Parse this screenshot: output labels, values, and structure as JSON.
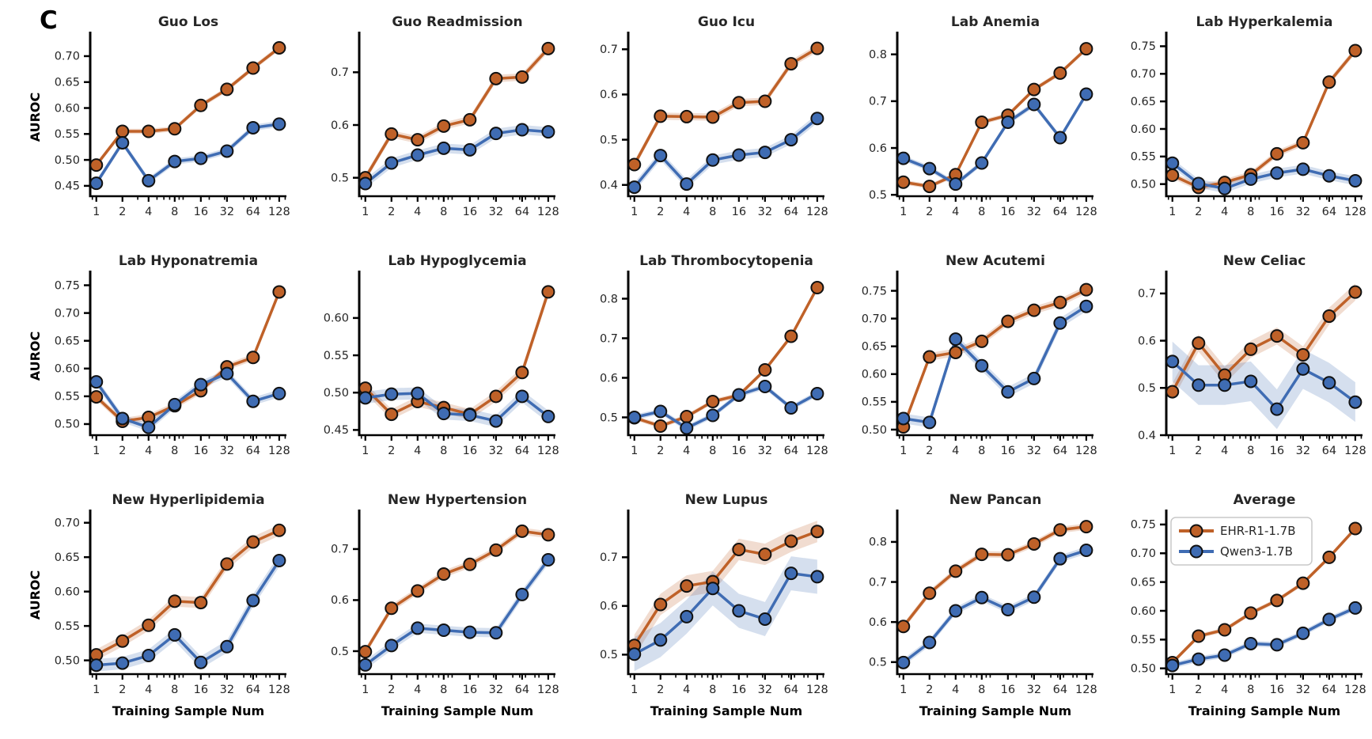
{
  "panel_label": "C",
  "figure": {
    "ylabel": "AUROC",
    "xlabel": "Training Sample Num",
    "x_tick_labels": [
      "1",
      "2",
      "4",
      "8",
      "16",
      "32",
      "64",
      "128"
    ],
    "colors": {
      "ehr": "#bf6128",
      "qwen": "#3f6cb3",
      "marker_edge": "#111111",
      "axis": "#000000",
      "text": "#262626",
      "legend_border": "#c8c8c8"
    },
    "legend": {
      "labels": [
        "EHR-R1-1.7B",
        "Qwen3-1.7B"
      ]
    }
  },
  "chart_data": [
    {
      "type": "line",
      "title": "Guo Los",
      "xscale": "log",
      "x": [
        1,
        2,
        4,
        8,
        16,
        32,
        64,
        128
      ],
      "series": [
        {
          "name": "EHR-R1-1.7B",
          "values": [
            0.49,
            0.555,
            0.555,
            0.56,
            0.605,
            0.636,
            0.677,
            0.716
          ],
          "band": 0.005
        },
        {
          "name": "Qwen3-1.7B",
          "values": [
            0.455,
            0.533,
            0.46,
            0.497,
            0.503,
            0.517,
            0.562,
            0.569
          ],
          "band": 0.006
        }
      ],
      "yticks": [
        "0.45",
        "0.50",
        "0.55",
        "0.60",
        "0.65",
        "0.70"
      ],
      "ylim": [
        0.43,
        0.735
      ],
      "show_ylabel": true,
      "show_xlabel": false,
      "show_legend": false
    },
    {
      "type": "line",
      "title": "Guo Readmission",
      "xscale": "log",
      "x": [
        1,
        2,
        4,
        8,
        16,
        32,
        64,
        128
      ],
      "series": [
        {
          "name": "EHR-R1-1.7B",
          "values": [
            0.5,
            0.583,
            0.572,
            0.598,
            0.61,
            0.688,
            0.691,
            0.745
          ],
          "band": 0.007
        },
        {
          "name": "Qwen3-1.7B",
          "values": [
            0.489,
            0.528,
            0.543,
            0.556,
            0.553,
            0.584,
            0.591,
            0.587
          ],
          "band": 0.009
        }
      ],
      "yticks": [
        "0.5",
        "0.6",
        "0.7"
      ],
      "ylim": [
        0.465,
        0.765
      ],
      "show_ylabel": false,
      "show_xlabel": false,
      "show_legend": false
    },
    {
      "type": "line",
      "title": "Guo Icu",
      "xscale": "log",
      "x": [
        1,
        2,
        4,
        8,
        16,
        32,
        64,
        128
      ],
      "series": [
        {
          "name": "EHR-R1-1.7B",
          "values": [
            0.445,
            0.552,
            0.551,
            0.55,
            0.582,
            0.585,
            0.668,
            0.702
          ],
          "band": 0.008
        },
        {
          "name": "Qwen3-1.7B",
          "values": [
            0.395,
            0.465,
            0.402,
            0.455,
            0.466,
            0.472,
            0.5,
            0.547
          ],
          "band": 0.01
        }
      ],
      "yticks": [
        "0.4",
        "0.5",
        "0.6",
        "0.7"
      ],
      "ylim": [
        0.375,
        0.725
      ],
      "show_ylabel": false,
      "show_xlabel": false,
      "show_legend": false
    },
    {
      "type": "line",
      "title": "Lab Anemia",
      "xscale": "log",
      "x": [
        1,
        2,
        4,
        8,
        16,
        32,
        64,
        128
      ],
      "series": [
        {
          "name": "EHR-R1-1.7B",
          "values": [
            0.527,
            0.518,
            0.543,
            0.655,
            0.67,
            0.725,
            0.76,
            0.812
          ],
          "band": 0.005
        },
        {
          "name": "Qwen3-1.7B",
          "values": [
            0.578,
            0.556,
            0.523,
            0.568,
            0.655,
            0.693,
            0.622,
            0.715
          ],
          "band": 0.006
        }
      ],
      "yticks": [
        "0.5",
        "0.6",
        "0.7",
        "0.8"
      ],
      "ylim": [
        0.497,
        0.835
      ],
      "show_ylabel": false,
      "show_xlabel": false,
      "show_legend": false
    },
    {
      "type": "line",
      "title": "Lab Hyperkalemia",
      "xscale": "log",
      "x": [
        1,
        2,
        4,
        8,
        16,
        32,
        64,
        128
      ],
      "series": [
        {
          "name": "EHR-R1-1.7B",
          "values": [
            0.516,
            0.494,
            0.503,
            0.517,
            0.555,
            0.575,
            0.685,
            0.742
          ],
          "band": 0.006
        },
        {
          "name": "Qwen3-1.7B",
          "values": [
            0.538,
            0.501,
            0.492,
            0.509,
            0.52,
            0.527,
            0.515,
            0.506
          ],
          "band": 0.008
        }
      ],
      "yticks": [
        "0.50",
        "0.55",
        "0.60",
        "0.65",
        "0.70",
        "0.75"
      ],
      "ylim": [
        0.478,
        0.765
      ],
      "show_ylabel": false,
      "show_xlabel": false,
      "show_legend": false
    },
    {
      "type": "line",
      "title": "Lab Hyponatremia",
      "xscale": "log",
      "x": [
        1,
        2,
        4,
        8,
        16,
        32,
        64,
        128
      ],
      "series": [
        {
          "name": "EHR-R1-1.7B",
          "values": [
            0.549,
            0.505,
            0.512,
            0.533,
            0.56,
            0.603,
            0.62,
            0.738
          ],
          "band": 0.006
        },
        {
          "name": "Qwen3-1.7B",
          "values": [
            0.576,
            0.51,
            0.494,
            0.535,
            0.571,
            0.591,
            0.541,
            0.555
          ],
          "band": 0.007
        }
      ],
      "yticks": [
        "0.50",
        "0.55",
        "0.60",
        "0.65",
        "0.70",
        "0.75"
      ],
      "ylim": [
        0.48,
        0.765
      ],
      "show_ylabel": true,
      "show_xlabel": false,
      "show_legend": false
    },
    {
      "type": "line",
      "title": "Lab Hypoglycemia",
      "xscale": "log",
      "x": [
        1,
        2,
        4,
        8,
        16,
        32,
        64,
        128
      ],
      "series": [
        {
          "name": "EHR-R1-1.7B",
          "values": [
            0.506,
            0.471,
            0.488,
            0.48,
            0.471,
            0.495,
            0.527,
            0.635
          ],
          "band": 0.007
        },
        {
          "name": "Qwen3-1.7B",
          "values": [
            0.493,
            0.498,
            0.499,
            0.472,
            0.47,
            0.462,
            0.495,
            0.468
          ],
          "band": 0.008
        }
      ],
      "yticks": [
        "0.45",
        "0.50",
        "0.55",
        "0.60"
      ],
      "ylim": [
        0.443,
        0.655
      ],
      "show_ylabel": false,
      "show_xlabel": false,
      "show_legend": false
    },
    {
      "type": "line",
      "title": "Lab Thrombocytopenia",
      "xscale": "log",
      "x": [
        1,
        2,
        4,
        8,
        16,
        32,
        64,
        128
      ],
      "series": [
        {
          "name": "EHR-R1-1.7B",
          "values": [
            0.499,
            0.478,
            0.502,
            0.54,
            0.556,
            0.62,
            0.705,
            0.828
          ],
          "band": 0.006
        },
        {
          "name": "Qwen3-1.7B",
          "values": [
            0.5,
            0.515,
            0.473,
            0.505,
            0.557,
            0.578,
            0.524,
            0.56
          ],
          "band": 0.007
        }
      ],
      "yticks": [
        "0.5",
        "0.6",
        "0.7",
        "0.8"
      ],
      "ylim": [
        0.455,
        0.855
      ],
      "show_ylabel": false,
      "show_xlabel": false,
      "show_legend": false
    },
    {
      "type": "line",
      "title": "New Acutemi",
      "xscale": "log",
      "x": [
        1,
        2,
        4,
        8,
        16,
        32,
        64,
        128
      ],
      "series": [
        {
          "name": "EHR-R1-1.7B",
          "values": [
            0.505,
            0.631,
            0.639,
            0.659,
            0.695,
            0.715,
            0.729,
            0.752
          ],
          "band": 0.007
        },
        {
          "name": "Qwen3-1.7B",
          "values": [
            0.52,
            0.513,
            0.663,
            0.615,
            0.568,
            0.592,
            0.692,
            0.722
          ],
          "band": 0.009
        }
      ],
      "yticks": [
        "0.50",
        "0.55",
        "0.60",
        "0.65",
        "0.70",
        "0.75"
      ],
      "ylim": [
        0.49,
        0.775
      ],
      "show_ylabel": false,
      "show_xlabel": false,
      "show_legend": false
    },
    {
      "type": "line",
      "title": "New Celiac",
      "xscale": "log",
      "x": [
        1,
        2,
        4,
        8,
        16,
        32,
        64,
        128
      ],
      "series": [
        {
          "name": "EHR-R1-1.7B",
          "values": [
            0.492,
            0.595,
            0.527,
            0.582,
            0.61,
            0.57,
            0.652,
            0.703
          ],
          "band": 0.018
        },
        {
          "name": "Qwen3-1.7B",
          "values": [
            0.556,
            0.506,
            0.506,
            0.514,
            0.455,
            0.54,
            0.511,
            0.47
          ],
          "band": 0.042
        }
      ],
      "yticks": [
        "0.4",
        "0.5",
        "0.6",
        "0.7"
      ],
      "ylim": [
        0.4,
        0.735
      ],
      "show_ylabel": false,
      "show_xlabel": false,
      "show_legend": false
    },
    {
      "type": "line",
      "title": "New Hyperlipidemia",
      "xscale": "log",
      "x": [
        1,
        2,
        4,
        8,
        16,
        32,
        64,
        128
      ],
      "series": [
        {
          "name": "EHR-R1-1.7B",
          "values": [
            0.508,
            0.528,
            0.551,
            0.586,
            0.584,
            0.64,
            0.672,
            0.689
          ],
          "band": 0.008
        },
        {
          "name": "Qwen3-1.7B",
          "values": [
            0.493,
            0.496,
            0.507,
            0.537,
            0.497,
            0.52,
            0.587,
            0.645
          ],
          "band": 0.009
        }
      ],
      "yticks": [
        "0.50",
        "0.55",
        "0.60",
        "0.65",
        "0.70"
      ],
      "ylim": [
        0.48,
        0.71
      ],
      "show_ylabel": true,
      "show_xlabel": true,
      "show_legend": false
    },
    {
      "type": "line",
      "title": "New Hypertension",
      "xscale": "log",
      "x": [
        1,
        2,
        4,
        8,
        16,
        32,
        64,
        128
      ],
      "series": [
        {
          "name": "EHR-R1-1.7B",
          "values": [
            0.499,
            0.584,
            0.618,
            0.651,
            0.67,
            0.698,
            0.735,
            0.728
          ],
          "band": 0.007
        },
        {
          "name": "Qwen3-1.7B",
          "values": [
            0.473,
            0.511,
            0.545,
            0.541,
            0.537,
            0.536,
            0.611,
            0.679
          ],
          "band": 0.009
        }
      ],
      "yticks": [
        "0.5",
        "0.6",
        "0.7"
      ],
      "ylim": [
        0.455,
        0.765
      ],
      "show_ylabel": false,
      "show_xlabel": true,
      "show_legend": false
    },
    {
      "type": "line",
      "title": "New Lupus",
      "xscale": "log",
      "x": [
        1,
        2,
        4,
        8,
        16,
        32,
        64,
        128
      ],
      "series": [
        {
          "name": "EHR-R1-1.7B",
          "values": [
            0.519,
            0.603,
            0.641,
            0.65,
            0.716,
            0.706,
            0.733,
            0.753
          ],
          "band": 0.022
        },
        {
          "name": "Qwen3-1.7B",
          "values": [
            0.501,
            0.53,
            0.578,
            0.636,
            0.59,
            0.573,
            0.667,
            0.66
          ],
          "band": 0.035
        }
      ],
      "yticks": [
        "0.5",
        "0.6",
        "0.7"
      ],
      "ylim": [
        0.46,
        0.785
      ],
      "show_ylabel": false,
      "show_xlabel": true,
      "show_legend": false
    },
    {
      "type": "line",
      "title": "New Pancan",
      "xscale": "log",
      "x": [
        1,
        2,
        4,
        8,
        16,
        32,
        64,
        128
      ],
      "series": [
        {
          "name": "EHR-R1-1.7B",
          "values": [
            0.589,
            0.672,
            0.727,
            0.769,
            0.768,
            0.795,
            0.83,
            0.838
          ],
          "band": 0.008
        },
        {
          "name": "Qwen3-1.7B",
          "values": [
            0.499,
            0.549,
            0.628,
            0.661,
            0.631,
            0.662,
            0.758,
            0.779
          ],
          "band": 0.009
        }
      ],
      "yticks": [
        "0.5",
        "0.6",
        "0.7",
        "0.8"
      ],
      "ylim": [
        0.47,
        0.865
      ],
      "show_ylabel": false,
      "show_xlabel": true,
      "show_legend": false
    },
    {
      "type": "line",
      "title": "Average",
      "xscale": "log",
      "x": [
        1,
        2,
        4,
        8,
        16,
        32,
        64,
        128
      ],
      "series": [
        {
          "name": "EHR-R1-1.7B",
          "values": [
            0.51,
            0.556,
            0.567,
            0.596,
            0.618,
            0.648,
            0.693,
            0.743
          ],
          "band": 0.004
        },
        {
          "name": "Qwen3-1.7B",
          "values": [
            0.505,
            0.516,
            0.523,
            0.543,
            0.541,
            0.561,
            0.585,
            0.605
          ],
          "band": 0.005
        }
      ],
      "yticks": [
        "0.50",
        "0.55",
        "0.60",
        "0.65",
        "0.70",
        "0.75"
      ],
      "ylim": [
        0.49,
        0.765
      ],
      "show_ylabel": false,
      "show_xlabel": true,
      "show_legend": true
    }
  ]
}
